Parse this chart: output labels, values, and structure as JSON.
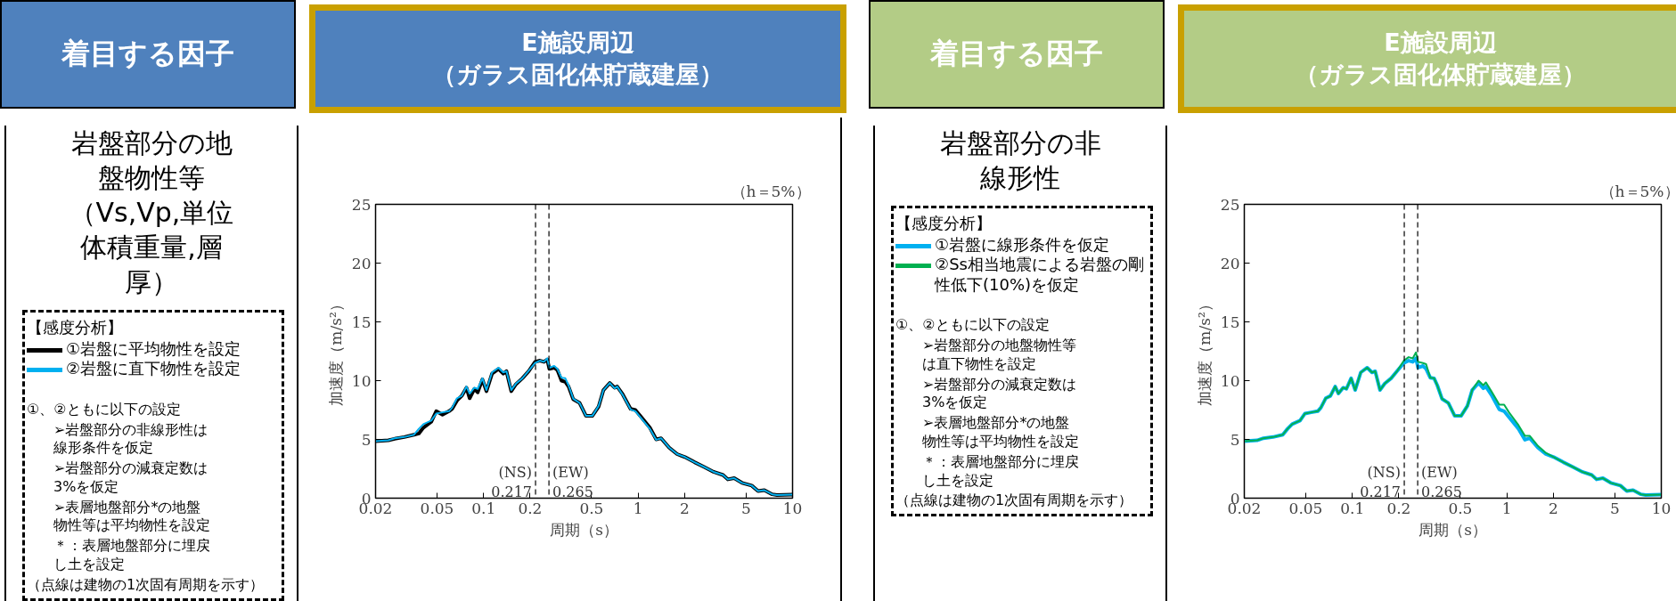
{
  "chart_data": [
    {
      "type": "other",
      "title": "着目する因子",
      "subtitle": "岩盤部分の地盤物性等（Vs,Vp,単位体積重量,層厚）",
      "annotations": [
        "①、②ともに以下の設定",
        "➢岩盤部分の非線形性は線形条件を仮定",
        "➢岩盤部分の減衰定数は3%を仮定",
        "➢表層地盤部分*の地盤物性等は平均物性を設定",
        "＊：表層地盤部分に埋戻し土を設定",
        "（点線は建物の1次固有周期を示す）"
      ]
    },
    {
      "type": "line",
      "title": "E施設周辺（ガラス固化体貯蔵建屋）",
      "xlabel": "周期（s）",
      "ylabel": "加速度（m/s²）",
      "legend_title": "【感度分析】",
      "legend": "left",
      "log": "x",
      "grid": false,
      "line_style": "solid",
      "xlim": [
        0.02,
        10
      ],
      "xticks": [
        0.02,
        0.05,
        0.1,
        0.2,
        0.5,
        1,
        2,
        5,
        10
      ],
      "ylim": [
        0,
        25
      ],
      "yticks": [
        0,
        5,
        10,
        15,
        20,
        25
      ],
      "annotations": [
        "（h＝5%）"
      ],
      "ref_lines": [
        {
          "axis": "x",
          "value": 0.217,
          "label": "(NS)\n0.217",
          "color": "#000000",
          "line_style": "dashed"
        },
        {
          "axis": "x",
          "value": 0.265,
          "label": "(EW)\n0.265",
          "color": "#000000",
          "line_style": "dashed"
        }
      ],
      "x": [
        0.02,
        0.0242,
        0.0266,
        0.0307,
        0.0355,
        0.0381,
        0.0408,
        0.0459,
        0.0494,
        0.0542,
        0.0598,
        0.0626,
        0.0673,
        0.0722,
        0.0775,
        0.0813,
        0.0872,
        0.0916,
        0.0983,
        0.1044,
        0.1135,
        0.1249,
        0.1341,
        0.1407,
        0.1511,
        0.1622,
        0.1784,
        0.196,
        0.2156,
        0.2316,
        0.2462,
        0.2583,
        0.2666,
        0.2866,
        0.3005,
        0.3195,
        0.3383,
        0.3549,
        0.3809,
        0.4186,
        0.4602,
        0.5059,
        0.556,
        0.5972,
        0.6564,
        0.7051,
        0.7326,
        0.7944,
        0.8946,
        0.9611,
        1.033,
        1.192,
        1.311,
        1.41,
        1.59,
        1.79,
        2.01,
        2.32,
        2.68,
        3.08,
        3.55,
        3.81,
        4.19,
        4.71,
        5.44,
        5.98,
        6.57,
        7.38,
        7.92,
        10
      ],
      "series": [
        {
          "name": "①岩盤に平均物性を設定",
          "color": "#000000",
          "values": [
            4.84,
            4.92,
            5.05,
            5.2,
            5.4,
            5.5,
            6.0,
            6.5,
            7.4,
            7.1,
            7.4,
            7.6,
            8.3,
            8.7,
            9.4,
            8.5,
            9.3,
            9.0,
            10.1,
            9.1,
            10.6,
            11.0,
            10.6,
            10.8,
            9.1,
            9.7,
            10.2,
            10.8,
            11.6,
            11.7,
            11.6,
            11.8,
            11.0,
            11.1,
            10.9,
            10.0,
            9.9,
            9.5,
            8.4,
            8.1,
            7.0,
            7.0,
            7.8,
            9.2,
            9.8,
            9.4,
            9.5,
            8.85,
            7.6,
            7.5,
            7.0,
            6.0,
            5.0,
            5.1,
            4.3,
            3.75,
            3.5,
            3.06,
            2.65,
            2.24,
            1.97,
            1.6,
            1.7,
            1.3,
            1.07,
            0.6,
            0.68,
            0.33,
            0.27,
            0.3
          ]
        },
        {
          "name": "②岩盤に直下物性を設定",
          "color": "#00b0f0",
          "values": [
            4.84,
            4.92,
            5.1,
            5.2,
            5.4,
            5.9,
            6.3,
            6.6,
            7.2,
            7.3,
            7.4,
            7.7,
            8.5,
            8.7,
            9.5,
            8.9,
            9.4,
            9.3,
            10.2,
            9.2,
            10.7,
            11.1,
            10.7,
            10.8,
            9.2,
            9.75,
            10.2,
            10.85,
            11.5,
            11.7,
            11.6,
            11.9,
            11.1,
            11.25,
            11.0,
            10.25,
            10.2,
            9.6,
            8.45,
            8.1,
            7.0,
            7.0,
            7.85,
            9.2,
            9.8,
            9.35,
            9.5,
            8.8,
            7.55,
            7.4,
            6.9,
            5.9,
            4.97,
            5.1,
            4.3,
            3.75,
            3.5,
            3.06,
            2.65,
            2.24,
            1.97,
            1.6,
            1.7,
            1.3,
            1.07,
            0.6,
            0.68,
            0.33,
            0.27,
            0.3
          ]
        }
      ]
    },
    {
      "type": "other",
      "title": "着目する因子",
      "subtitle": "岩盤部分の非線形性",
      "annotations": [
        "①、②ともに以下の設定",
        "➢岩盤部分の地盤物性等は直下物性を設定",
        "➢岩盤部分の減衰定数は3%を仮定",
        "➢表層地盤部分*の地盤物性等は平均物性を設定",
        "＊：表層地盤部分に埋戻し土を設定",
        "（点線は建物の1次固有周期を示す）"
      ]
    },
    {
      "type": "line",
      "title": "E施設周辺（ガラス固化体貯蔵建屋）",
      "xlabel": "周期（s）",
      "ylabel": "加速度（m/s²）",
      "legend_title": "【感度分析】",
      "legend": "left",
      "log": "x",
      "grid": false,
      "line_style": "solid",
      "xlim": [
        0.02,
        10
      ],
      "xticks": [
        0.02,
        0.05,
        0.1,
        0.2,
        0.5,
        1,
        2,
        5,
        10
      ],
      "ylim": [
        0,
        25
      ],
      "yticks": [
        0,
        5,
        10,
        15,
        20,
        25
      ],
      "annotations": [
        "（h＝5%）"
      ],
      "ref_lines": [
        {
          "axis": "x",
          "value": 0.217,
          "label": "(NS)\n0.217",
          "color": "#000000",
          "line_style": "dashed"
        },
        {
          "axis": "x",
          "value": 0.265,
          "label": "(EW)\n0.265",
          "color": "#000000",
          "line_style": "dashed"
        }
      ],
      "x": [
        0.02,
        0.0242,
        0.0266,
        0.0307,
        0.0355,
        0.0381,
        0.0408,
        0.0459,
        0.0494,
        0.0542,
        0.0598,
        0.0626,
        0.0673,
        0.0722,
        0.0775,
        0.0813,
        0.0872,
        0.0916,
        0.0983,
        0.1044,
        0.1135,
        0.1249,
        0.1341,
        0.1407,
        0.1511,
        0.1622,
        0.1784,
        0.196,
        0.2156,
        0.2316,
        0.2462,
        0.2583,
        0.2666,
        0.2866,
        0.3005,
        0.3195,
        0.3383,
        0.3549,
        0.3809,
        0.4186,
        0.4602,
        0.5059,
        0.556,
        0.5972,
        0.6564,
        0.7051,
        0.7326,
        0.7944,
        0.8946,
        0.9611,
        1.033,
        1.192,
        1.311,
        1.41,
        1.59,
        1.79,
        2.01,
        2.32,
        2.68,
        3.08,
        3.55,
        3.81,
        4.19,
        4.71,
        5.44,
        5.98,
        6.57,
        7.38,
        7.92,
        10
      ],
      "series": [
        {
          "name": "①岩盤に線形条件を仮定",
          "color": "#00b0f0",
          "values": [
            4.84,
            4.92,
            5.1,
            5.2,
            5.4,
            5.9,
            6.3,
            6.6,
            7.2,
            7.3,
            7.4,
            7.7,
            8.5,
            8.7,
            9.5,
            8.9,
            9.4,
            9.3,
            10.2,
            9.2,
            10.7,
            11.1,
            10.7,
            10.8,
            9.2,
            9.75,
            10.2,
            10.85,
            11.5,
            11.7,
            11.6,
            11.9,
            11.1,
            11.25,
            11.0,
            10.25,
            10.2,
            9.6,
            8.45,
            8.1,
            7.0,
            7.0,
            7.85,
            9.2,
            9.8,
            9.35,
            9.5,
            8.8,
            7.55,
            7.4,
            6.9,
            5.9,
            4.97,
            5.1,
            4.3,
            3.75,
            3.5,
            3.06,
            2.65,
            2.24,
            1.97,
            1.6,
            1.7,
            1.3,
            1.07,
            0.6,
            0.68,
            0.33,
            0.27,
            0.3
          ]
        },
        {
          "name": "②Ss相当地震による岩盤の剛性低下(10%)を仮定",
          "color": "#00b050",
          "values": [
            4.84,
            4.92,
            5.1,
            5.2,
            5.4,
            5.9,
            6.3,
            6.6,
            7.2,
            7.3,
            7.4,
            7.7,
            8.5,
            8.7,
            9.5,
            8.9,
            9.4,
            9.3,
            10.2,
            9.2,
            10.7,
            11.1,
            10.7,
            10.8,
            9.2,
            9.75,
            10.2,
            10.85,
            11.7,
            12.0,
            11.9,
            12.4,
            11.6,
            11.5,
            11.4,
            10.25,
            10.2,
            9.6,
            8.45,
            8.1,
            7.0,
            7.0,
            7.85,
            9.2,
            10.0,
            9.6,
            9.85,
            9.1,
            7.95,
            7.95,
            7.3,
            6.2,
            5.3,
            5.3,
            4.45,
            3.85,
            3.5,
            3.06,
            2.65,
            2.24,
            1.97,
            1.6,
            1.7,
            1.3,
            1.07,
            0.6,
            0.68,
            0.33,
            0.27,
            0.3
          ]
        }
      ]
    }
  ]
}
